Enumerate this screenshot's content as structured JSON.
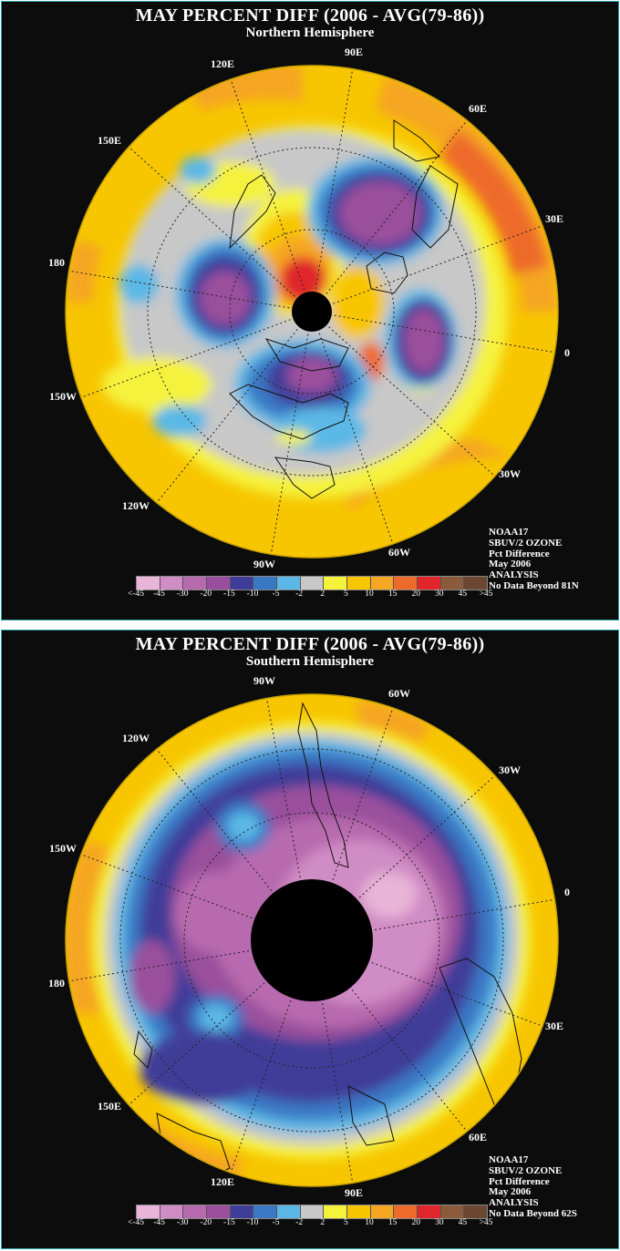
{
  "legend_colors": [
    "#e8b4d8",
    "#d08cc4",
    "#b76aae",
    "#9a4f9c",
    "#3f3d99",
    "#3a78c4",
    "#5bb8e6",
    "#c8c8c8",
    "#f5f23c",
    "#f7c600",
    "#f5a623",
    "#ee6a2a",
    "#e0262a",
    "#8b5a3a",
    "#6b4630"
  ],
  "legend_labels": [
    "<-45",
    "-45",
    "-30",
    "-20",
    "-15",
    "-10",
    "-5",
    "-2",
    "2",
    "5",
    "10",
    "15",
    "20",
    "30",
    "45",
    ">45"
  ],
  "panels": [
    {
      "id": "north",
      "title": "MAY PERCENT DIFF (2006 - AVG(79-86))",
      "subtitle": "Northern Hemisphere",
      "longitude_labels": [
        "90E",
        "60E",
        "30E",
        "0",
        "30W",
        "60W",
        "90W",
        "120W",
        "150W",
        "180",
        "150E",
        "120E"
      ],
      "info": [
        "NOAA17",
        "SBUV/2 OZONE",
        "Pct Difference",
        "May 2006",
        "ANALYSIS",
        "No Data Beyond 81N"
      ]
    },
    {
      "id": "south",
      "title": "MAY PERCENT DIFF (2006 - AVG(79-86))",
      "subtitle": "Southern Hemisphere",
      "longitude_labels": [
        "90W",
        "60W",
        "30W",
        "0",
        "30E",
        "60E",
        "90E",
        "120E",
        "150E",
        "180",
        "150W",
        "120W"
      ],
      "info": [
        "NOAA17",
        "SBUV/2 OZONE",
        "Pct Difference",
        "May 2006",
        "ANALYSIS",
        "No Data Beyond 62S"
      ]
    }
  ]
}
